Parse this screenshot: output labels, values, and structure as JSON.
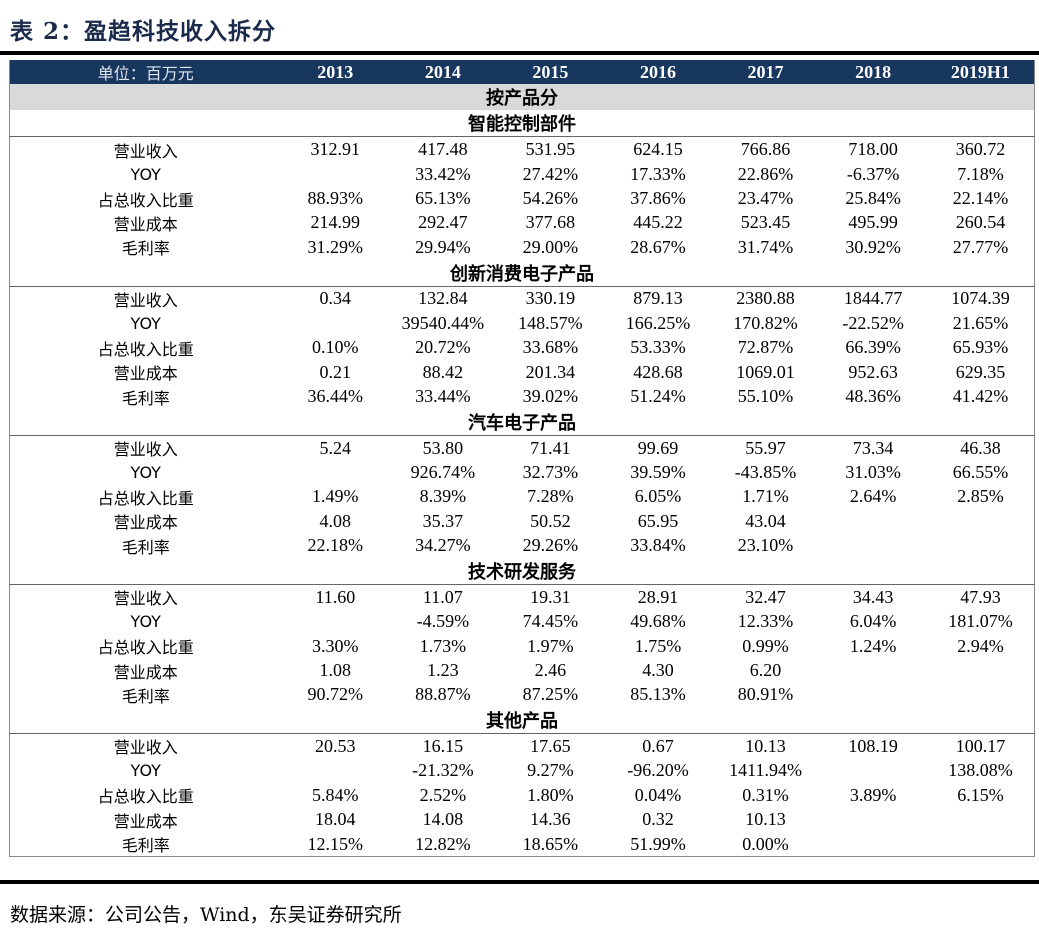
{
  "title": "表 2：盈趋科技收入拆分",
  "header": {
    "unit_label": "单位：百万元",
    "years": [
      "2013",
      "2014",
      "2015",
      "2016",
      "2017",
      "2018",
      "2019H1"
    ]
  },
  "group_label": "按产品分",
  "sections": [
    {
      "name": "智能控制部件",
      "rows": [
        {
          "label": "营业收入",
          "values": [
            "312.91",
            "417.48",
            "531.95",
            "624.15",
            "766.86",
            "718.00",
            "360.72"
          ]
        },
        {
          "label": "YOY",
          "values": [
            "",
            "33.42%",
            "27.42%",
            "17.33%",
            "22.86%",
            "-6.37%",
            "7.18%"
          ]
        },
        {
          "label": "占总收入比重",
          "values": [
            "88.93%",
            "65.13%",
            "54.26%",
            "37.86%",
            "23.47%",
            "25.84%",
            "22.14%"
          ]
        },
        {
          "label": "营业成本",
          "values": [
            "214.99",
            "292.47",
            "377.68",
            "445.22",
            "523.45",
            "495.99",
            "260.54"
          ]
        },
        {
          "label": "毛利率",
          "values": [
            "31.29%",
            "29.94%",
            "29.00%",
            "28.67%",
            "31.74%",
            "30.92%",
            "27.77%"
          ]
        }
      ]
    },
    {
      "name": "创新消费电子产品",
      "rows": [
        {
          "label": "营业收入",
          "values": [
            "0.34",
            "132.84",
            "330.19",
            "879.13",
            "2380.88",
            "1844.77",
            "1074.39"
          ]
        },
        {
          "label": "YOY",
          "values": [
            "",
            "39540.44%",
            "148.57%",
            "166.25%",
            "170.82%",
            "-22.52%",
            "21.65%"
          ]
        },
        {
          "label": "占总收入比重",
          "values": [
            "0.10%",
            "20.72%",
            "33.68%",
            "53.33%",
            "72.87%",
            "66.39%",
            "65.93%"
          ]
        },
        {
          "label": "营业成本",
          "values": [
            "0.21",
            "88.42",
            "201.34",
            "428.68",
            "1069.01",
            "952.63",
            "629.35"
          ]
        },
        {
          "label": "毛利率",
          "values": [
            "36.44%",
            "33.44%",
            "39.02%",
            "51.24%",
            "55.10%",
            "48.36%",
            "41.42%"
          ]
        }
      ]
    },
    {
      "name": "汽车电子产品",
      "rows": [
        {
          "label": "营业收入",
          "values": [
            "5.24",
            "53.80",
            "71.41",
            "99.69",
            "55.97",
            "73.34",
            "46.38"
          ]
        },
        {
          "label": "YOY",
          "values": [
            "",
            "926.74%",
            "32.73%",
            "39.59%",
            "-43.85%",
            "31.03%",
            "66.55%"
          ]
        },
        {
          "label": "占总收入比重",
          "values": [
            "1.49%",
            "8.39%",
            "7.28%",
            "6.05%",
            "1.71%",
            "2.64%",
            "2.85%"
          ]
        },
        {
          "label": "营业成本",
          "values": [
            "4.08",
            "35.37",
            "50.52",
            "65.95",
            "43.04",
            "",
            ""
          ]
        },
        {
          "label": "毛利率",
          "values": [
            "22.18%",
            "34.27%",
            "29.26%",
            "33.84%",
            "23.10%",
            "",
            ""
          ]
        }
      ]
    },
    {
      "name": "技术研发服务",
      "rows": [
        {
          "label": "营业收入",
          "values": [
            "11.60",
            "11.07",
            "19.31",
            "28.91",
            "32.47",
            "34.43",
            "47.93"
          ]
        },
        {
          "label": "YOY",
          "values": [
            "",
            "-4.59%",
            "74.45%",
            "49.68%",
            "12.33%",
            "6.04%",
            "181.07%"
          ]
        },
        {
          "label": "占总收入比重",
          "values": [
            "3.30%",
            "1.73%",
            "1.97%",
            "1.75%",
            "0.99%",
            "1.24%",
            "2.94%"
          ]
        },
        {
          "label": "营业成本",
          "values": [
            "1.08",
            "1.23",
            "2.46",
            "4.30",
            "6.20",
            "",
            ""
          ]
        },
        {
          "label": "毛利率",
          "values": [
            "90.72%",
            "88.87%",
            "87.25%",
            "85.13%",
            "80.91%",
            "",
            ""
          ]
        }
      ]
    },
    {
      "name": "其他产品",
      "rows": [
        {
          "label": "营业收入",
          "values": [
            "20.53",
            "16.15",
            "17.65",
            "0.67",
            "10.13",
            "108.19",
            "100.17"
          ]
        },
        {
          "label": "YOY",
          "values": [
            "",
            "-21.32%",
            "9.27%",
            "-96.20%",
            "1411.94%",
            "",
            "138.08%"
          ]
        },
        {
          "label": "占总收入比重",
          "values": [
            "5.84%",
            "2.52%",
            "1.80%",
            "0.04%",
            "0.31%",
            "3.89%",
            "6.15%"
          ]
        },
        {
          "label": "营业成本",
          "values": [
            "18.04",
            "14.08",
            "14.36",
            "0.32",
            "10.13",
            "",
            ""
          ]
        },
        {
          "label": "毛利率",
          "values": [
            "12.15%",
            "12.82%",
            "18.65%",
            "51.99%",
            "0.00%",
            "",
            ""
          ]
        }
      ]
    }
  ],
  "source": "数据来源：公司公告，Wind，东吴证券研究所"
}
